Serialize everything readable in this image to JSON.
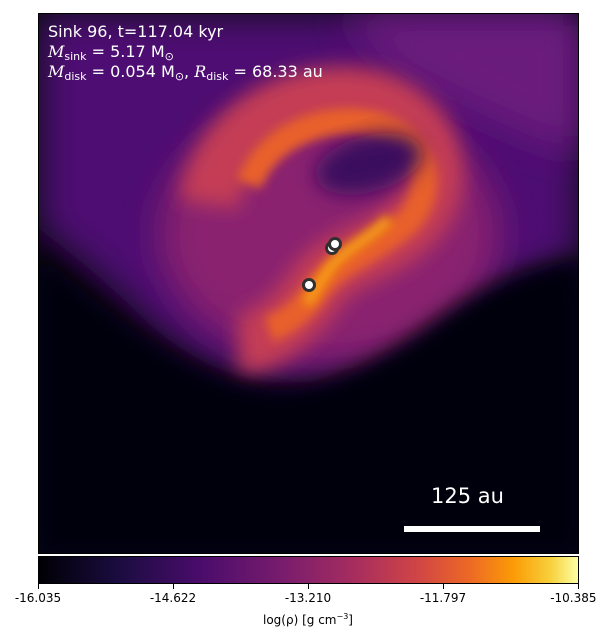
{
  "annotation": {
    "line1": "Sink 96, t=117.04 kyr",
    "m_sink_symbol": "M",
    "m_sink_sub": "sink",
    "m_sink_value": " = 5.17 M",
    "m_sun_sub": "⊙",
    "m_disk_symbol": "M",
    "m_disk_sub": "disk",
    "m_disk_value": " = 0.054 M",
    "r_disk_symbol": "R",
    "r_disk_sub": "disk",
    "r_disk_value": " = 68.33 au"
  },
  "scale_bar": {
    "label": "125 au"
  },
  "colorbar": {
    "ticks": [
      "-16.035",
      "-14.622",
      "-13.210",
      "-11.797",
      "-10.385"
    ],
    "label_main": "log(ρ) [g cm",
    "label_exp": "−3",
    "label_end": "]",
    "colormap": "inferno"
  },
  "sinks": {
    "count": 3,
    "fill": "#ffffff",
    "stroke": "#303030"
  }
}
